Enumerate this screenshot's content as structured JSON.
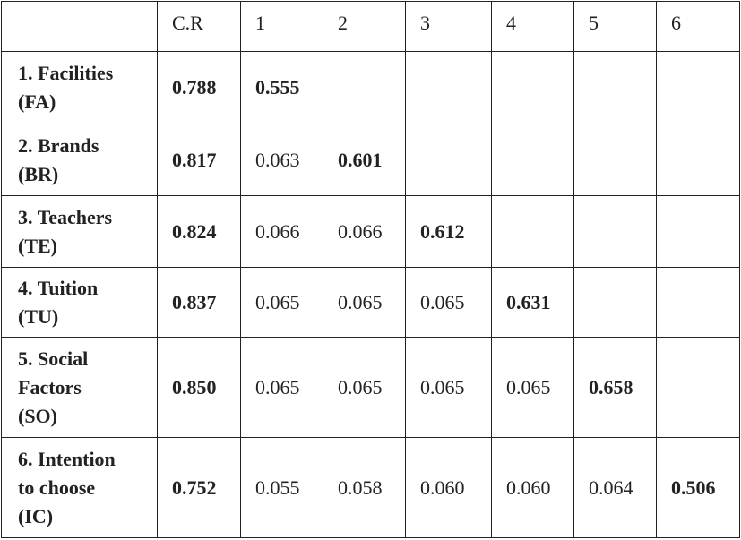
{
  "table": {
    "header": [
      "C.R",
      "1",
      "2",
      "3",
      "4",
      "5",
      "6"
    ],
    "rows": [
      {
        "label": [
          "1. Facilities",
          "(FA)"
        ],
        "cr": "0.788",
        "values": [
          "0.555"
        ]
      },
      {
        "label": [
          "2. Brands",
          "(BR)"
        ],
        "cr": "0.817",
        "values": [
          "0.063",
          "0.601"
        ]
      },
      {
        "label": [
          "3. Teachers",
          "(TE)"
        ],
        "cr": "0.824",
        "values": [
          "0.066",
          "0.066",
          "0.612"
        ]
      },
      {
        "label": [
          "4. Tuition",
          "(TU)"
        ],
        "cr": "0.837",
        "values": [
          "0.065",
          "0.065",
          "0.065",
          "0.631"
        ]
      },
      {
        "label": [
          "5. Social",
          "Factors",
          "(SO)"
        ],
        "cr": "0.850",
        "values": [
          "0.065",
          "0.065",
          "0.065",
          "0.065",
          "0.658"
        ]
      },
      {
        "label": [
          "6. Intention",
          "to choose",
          "(IC)"
        ],
        "cr": "0.752",
        "values": [
          "0.055",
          "0.058",
          "0.060",
          "0.060",
          "0.064",
          "0.506"
        ]
      }
    ]
  }
}
